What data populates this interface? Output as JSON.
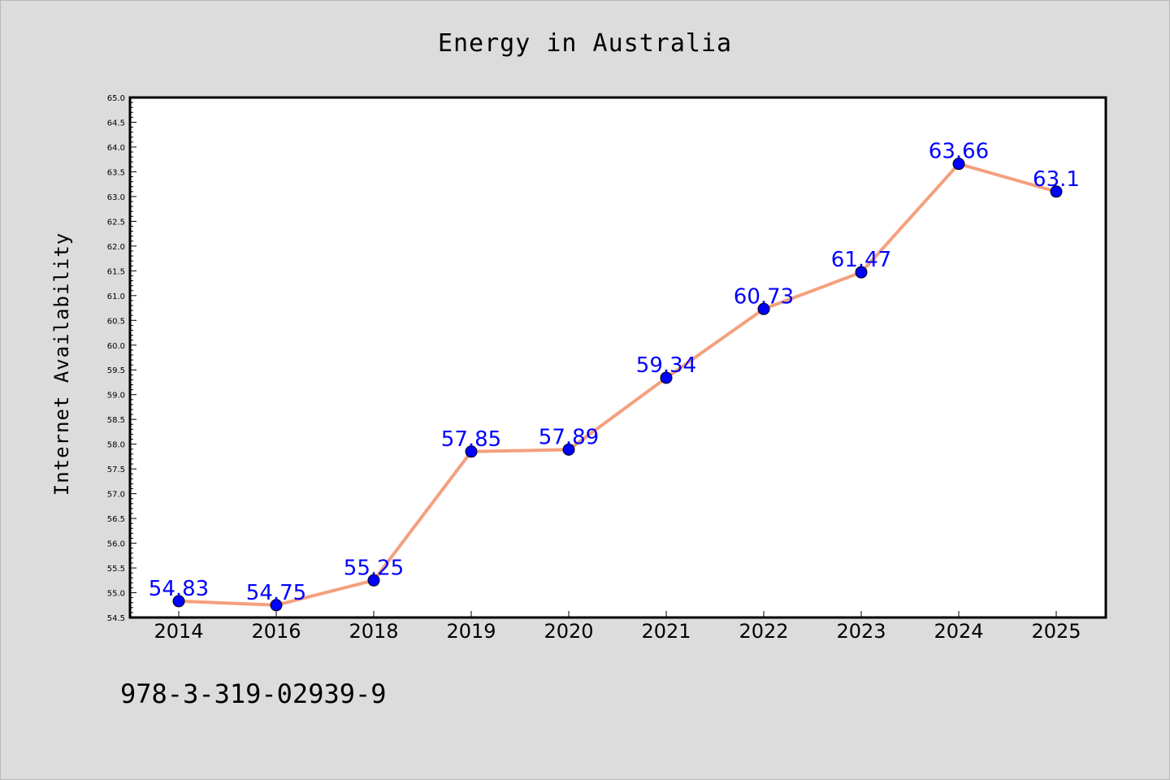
{
  "chart_data": {
    "type": "line",
    "title": "Energy in Australia",
    "xlabel": "",
    "ylabel": "Internet Availability",
    "categories": [
      "2014",
      "2016",
      "2018",
      "2019",
      "2020",
      "2021",
      "2022",
      "2023",
      "2024",
      "2025"
    ],
    "series": [
      {
        "values": [
          54.83,
          54.75,
          55.25,
          57.85,
          57.89,
          59.34,
          60.73,
          61.47,
          63.66,
          63.1
        ],
        "labels": [
          "54.83",
          "54.75",
          "55.25",
          "57.85",
          "57.89",
          "59.34",
          "60.73",
          "61.47",
          "63.66",
          "63.1"
        ],
        "line_color": "#f4a07e",
        "marker_color": "#0000ff"
      }
    ],
    "ylim": [
      54.5,
      65.0
    ],
    "yticks": [
      "54.5",
      "55.0",
      "55.5",
      "56.0",
      "56.5",
      "57.0",
      "57.5",
      "58.0",
      "58.5",
      "59.0",
      "59.5",
      "60.0",
      "60.5",
      "61.0",
      "61.5",
      "62.0",
      "62.5",
      "63.0",
      "63.5",
      "64.0",
      "64.5",
      "65.0"
    ],
    "grid": false,
    "legend": "none"
  },
  "footer": {
    "code": "978-3-319-02939-9"
  },
  "colors": {
    "background": "#dcdcdc",
    "plot_background": "#ffffff",
    "line": "#f4a07e",
    "marker": "#0000ff",
    "data_label": "#0000ff"
  }
}
